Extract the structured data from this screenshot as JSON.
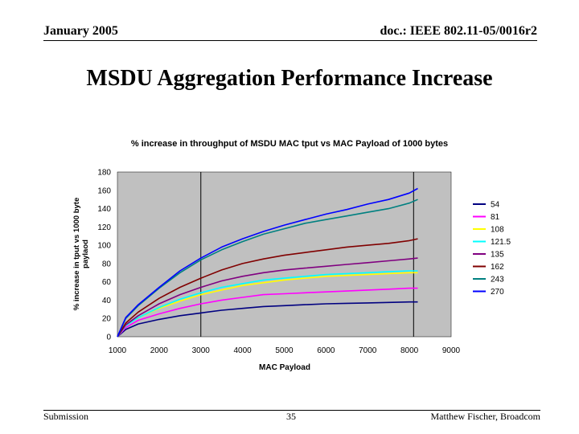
{
  "header": {
    "date": "January 2005",
    "doc": "doc.: IEEE 802.11-05/0016r2"
  },
  "slide_title": "MSDU Aggregation Performance Increase",
  "footer": {
    "left": "Submission",
    "page": "35",
    "author": "Matthew Fischer, Broadcom"
  },
  "chart_data": {
    "type": "line",
    "title": "% increase in throughput of MSDU MAC tput vs MAC Payload of 1000 bytes",
    "xlabel": "MAC Payload",
    "ylabel": "% increase in tput vs 1000 byte paylaod",
    "xlim": [
      1000,
      9000
    ],
    "ylim": [
      0,
      180
    ],
    "x_ticks": [
      "1000",
      "2000",
      "3000",
      "4000",
      "5000",
      "6000",
      "7000",
      "8000",
      "9000"
    ],
    "y_ticks": [
      "0",
      "20",
      "40",
      "60",
      "80",
      "100",
      "120",
      "140",
      "160",
      "180"
    ],
    "vertical_markers": [
      3000,
      8100
    ],
    "x": [
      1000,
      1200,
      1500,
      2000,
      2500,
      3000,
      3500,
      4000,
      4500,
      5000,
      5500,
      6000,
      6500,
      7000,
      7500,
      8000,
      8200
    ],
    "series": [
      {
        "name": "54",
        "color": "#000080",
        "values": [
          0,
          8,
          14,
          19,
          23,
          26,
          29,
          31,
          33,
          34,
          35,
          36,
          36.5,
          37,
          37.5,
          38,
          38
        ]
      },
      {
        "name": "81",
        "color": "#ff00ff",
        "values": [
          0,
          10,
          18,
          25,
          31,
          36,
          40,
          43,
          46,
          47,
          48,
          49,
          50,
          51,
          52,
          53,
          53
        ]
      },
      {
        "name": "108",
        "color": "#ffff00",
        "values": [
          0,
          12,
          21,
          31,
          39,
          46,
          51,
          56,
          59,
          62,
          64,
          66,
          67,
          68,
          69,
          70,
          70
        ]
      },
      {
        "name": "121.5",
        "color": "#00ffff",
        "values": [
          0,
          12,
          21,
          32,
          41,
          48,
          54,
          58,
          62,
          64,
          66,
          68,
          69,
          70,
          71,
          72,
          72
        ]
      },
      {
        "name": "135",
        "color": "#800080",
        "values": [
          0,
          13,
          23,
          36,
          46,
          54,
          61,
          66,
          70,
          73,
          75,
          77,
          79,
          81,
          83,
          85,
          86
        ]
      },
      {
        "name": "162",
        "color": "#800000",
        "values": [
          0,
          15,
          27,
          42,
          54,
          64,
          73,
          80,
          85,
          89,
          92,
          95,
          98,
          100,
          102,
          105,
          107
        ]
      },
      {
        "name": "243",
        "color": "#008080",
        "values": [
          0,
          20,
          34,
          53,
          70,
          84,
          95,
          104,
          112,
          118,
          124,
          128,
          132,
          136,
          140,
          146,
          150
        ]
      },
      {
        "name": "270",
        "color": "#0000ff",
        "values": [
          0,
          21,
          35,
          54,
          72,
          86,
          98,
          107,
          115,
          122,
          128,
          134,
          139,
          145,
          150,
          157,
          162
        ]
      }
    ]
  }
}
